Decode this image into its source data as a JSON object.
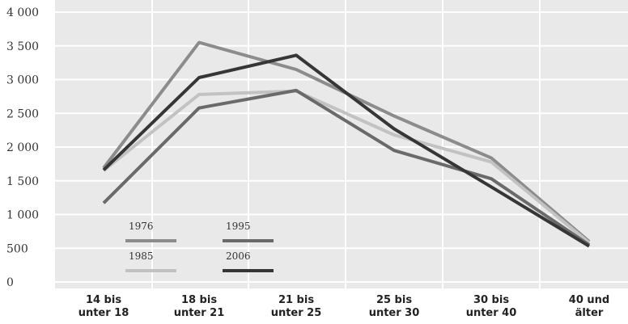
{
  "chart_data": {
    "type": "line",
    "title": "",
    "xlabel": "",
    "ylabel": "",
    "ylim": [
      0,
      4000
    ],
    "yticks": [
      0,
      500,
      1000,
      1500,
      2000,
      2500,
      3000,
      3500,
      4000
    ],
    "ytick_labels": [
      "0",
      "500",
      "1 000",
      "1 500",
      "2 000",
      "2 500",
      "3 000",
      "3 500",
      "4 000"
    ],
    "grid": true,
    "legend_position": "bottom-left",
    "categories": [
      [
        "14 bis",
        "unter 18"
      ],
      [
        "18 bis",
        "unter 21"
      ],
      [
        "21 bis",
        "unter 25"
      ],
      [
        "25 bis",
        "unter 30"
      ],
      [
        "30 bis",
        "unter 40"
      ],
      [
        "40 und",
        "älter"
      ]
    ],
    "series": [
      {
        "name": "1976",
        "color": "#8c8c8c",
        "values": [
          1690,
          3550,
          3150,
          2460,
          1840,
          600
        ]
      },
      {
        "name": "1985",
        "color": "#c2c2c2",
        "values": [
          1650,
          2780,
          2830,
          2180,
          1780,
          580
        ]
      },
      {
        "name": "1995",
        "color": "#6a6a6a",
        "values": [
          1170,
          2580,
          2840,
          1950,
          1530,
          550
        ]
      },
      {
        "name": "2006",
        "color": "#363636",
        "values": [
          1660,
          3030,
          3360,
          2270,
          1410,
          530
        ]
      }
    ],
    "legend_order": [
      "1976",
      "1995",
      "1985",
      "2006"
    ]
  }
}
